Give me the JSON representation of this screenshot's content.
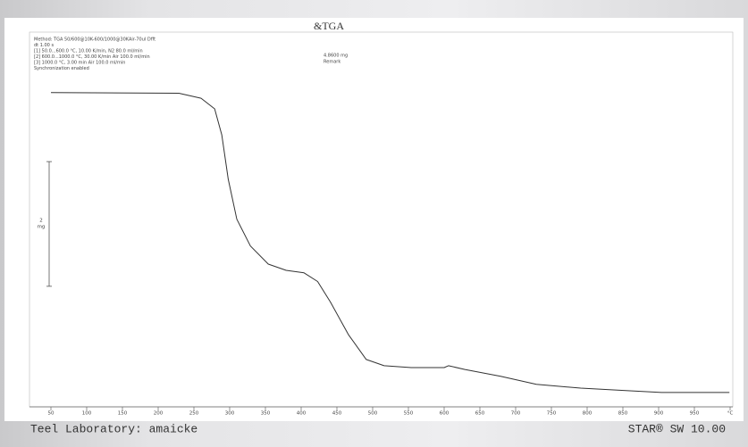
{
  "chart_data": {
    "type": "line",
    "title": "&TGA",
    "annotations": [
      "Method: TGA 50/600@10K-600/1000@30KAir-70ul Dfft",
      "dt 1.00 s",
      "[1] 50.0...600.0 °C, 10.00 K/min, N2 80.0 ml/min",
      "[2] 600.0...1000.0 °C, 30.00 K/min Air 100.0 ml/min",
      "[3] 1000.0 °C, 3.00 min          Air 100.0 ml/min",
      "Synchronization enabled"
    ],
    "sample_mass": "4.8600 mg",
    "remark": "Remark",
    "x": [
      50,
      229,
      260,
      279,
      289,
      298,
      310,
      329,
      354,
      379,
      404,
      423,
      441,
      466,
      491,
      516,
      554,
      600,
      606,
      629,
      679,
      729,
      791,
      854,
      904,
      999
    ],
    "series": [
      {
        "color": "#333333",
        "values": [
          4.86,
          4.85,
          4.77,
          4.6,
          4.18,
          3.47,
          2.83,
          2.4,
          2.11,
          2.01,
          1.97,
          1.83,
          1.5,
          0.98,
          0.58,
          0.48,
          0.45,
          0.45,
          0.48,
          0.42,
          0.31,
          0.18,
          0.12,
          0.08,
          0.05,
          0.05
        ]
      }
    ],
    "xlim": [
      50,
      1000
    ],
    "ylim": [
      -0.18,
      5.83
    ],
    "xticks": [
      50,
      100,
      150,
      200,
      250,
      300,
      350,
      400,
      450,
      500,
      550,
      600,
      650,
      700,
      750,
      800,
      850,
      900,
      950,
      {
        "value": 1000,
        "label": "°C"
      }
    ],
    "scale_bar": {
      "value": 2,
      "unit": "mg"
    },
    "footer_left": "Teel Laboratory: amaicke",
    "footer_right": "STAR® SW 10.00"
  }
}
